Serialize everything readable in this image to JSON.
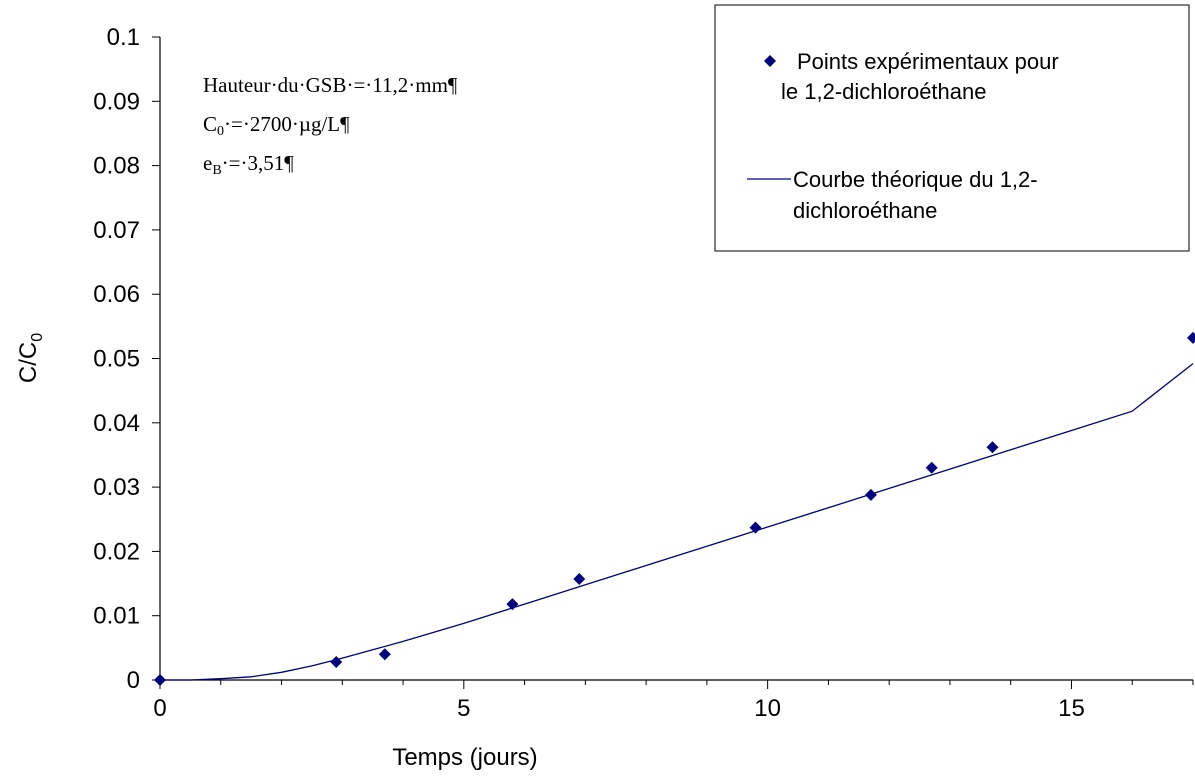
{
  "chart_data": {
    "type": "scatter",
    "xlabel": "Temps (jours)",
    "ylabel": "C/C",
    "ylabel_sub": "0",
    "xlim": [
      0,
      17
    ],
    "ylim": [
      0,
      0.1
    ],
    "x_ticks": [
      "0",
      "5",
      "10",
      "15"
    ],
    "x_tick_values": [
      0,
      5,
      10,
      15
    ],
    "y_ticks": [
      "0",
      "0.01",
      "0.02",
      "0.03",
      "0.04",
      "0.05",
      "0.06",
      "0.07",
      "0.08",
      "0.09",
      "0.1"
    ],
    "y_tick_values": [
      0,
      0.01,
      0.02,
      0.03,
      0.04,
      0.05,
      0.06,
      0.07,
      0.08,
      0.09,
      0.1
    ],
    "grid": false,
    "legend_position": "top-right",
    "series": [
      {
        "name": " Points expérimentaux pour le 1,2-dichloroéthane",
        "legend_lines": [
          " Points expérimentaux pour",
          "le 1,2-dichloroéthane"
        ],
        "kind": "scatter",
        "marker": "diamond",
        "color": "#000080",
        "x": [
          0,
          2.9,
          3.7,
          5.8,
          6.9,
          9.8,
          11.7,
          12.7,
          13.7,
          17
        ],
        "y": [
          0,
          0.0028,
          0.004,
          0.0118,
          0.0157,
          0.0237,
          0.0288,
          0.033,
          0.0362,
          0.0532
        ]
      },
      {
        "name": "Courbe théorique du 1,2-dichloroéthane",
        "legend_lines": [
          "Courbe théorique du 1,2-",
          "dichloroéthane"
        ],
        "kind": "line",
        "color": "#000080",
        "x": [
          0,
          0.5,
          1,
          1.5,
          2,
          2.5,
          3,
          3.5,
          4,
          5,
          6,
          7,
          8,
          9,
          10,
          11,
          12,
          13,
          14,
          15,
          16,
          17
        ],
        "y": [
          0,
          0,
          0.0002,
          0.0005,
          0.0012,
          0.0022,
          0.0034,
          0.0047,
          0.006,
          0.0088,
          0.0118,
          0.0148,
          0.0178,
          0.0208,
          0.0238,
          0.0268,
          0.0298,
          0.0328,
          0.0358,
          0.0388,
          0.0418,
          0.0492
        ]
      }
    ],
    "annotations": {
      "line1": "Hauteur·du·GSB·=·11,2·mm¶",
      "line2_pre": "C",
      "line2_sub": "0",
      "line2_post": "·=·2700·µg/L¶",
      "line3_pre": "e",
      "line3_sub": "B",
      "line3_post": "·=·3,51¶"
    }
  }
}
